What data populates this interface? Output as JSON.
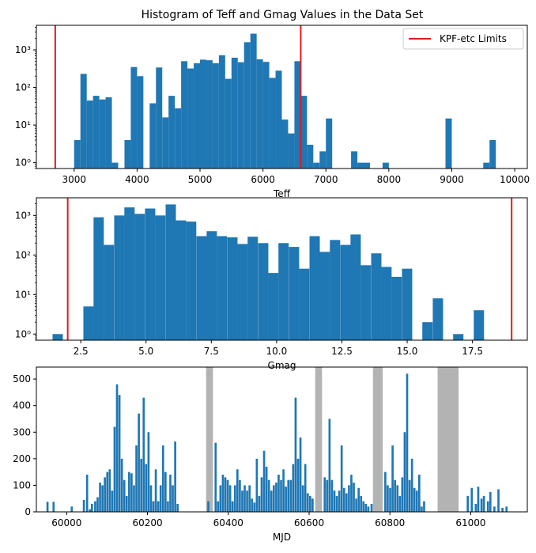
{
  "colors": {
    "bar": "#1f77b4",
    "limit": "#e41a1c",
    "shade": "#b3b3b3"
  },
  "chart_data": [
    {
      "type": "bar",
      "title": "Histogram of Teff and Gmag Values in the Data Set",
      "xlabel": "Teff",
      "ylabel": "",
      "yscale": "log",
      "xlim": [
        2400,
        10200
      ],
      "ylim": [
        0.7,
        4500
      ],
      "xticks": [
        3000,
        4000,
        5000,
        6000,
        7000,
        8000,
        9000,
        10000
      ],
      "xtick_labels": [
        "3000",
        "4000",
        "5000",
        "6000",
        "7000",
        "8000",
        "9000",
        "10000"
      ],
      "yticks": [
        1,
        10,
        100,
        1000
      ],
      "ytick_labels": [
        "10⁰",
        "10¹",
        "10²",
        "10³"
      ],
      "bin_width": 100,
      "bins": [
        [
          3000,
          4
        ],
        [
          3100,
          230
        ],
        [
          3200,
          45
        ],
        [
          3300,
          60
        ],
        [
          3400,
          48
        ],
        [
          3500,
          55
        ],
        [
          3600,
          1
        ],
        [
          3800,
          4
        ],
        [
          3900,
          350
        ],
        [
          4000,
          200
        ],
        [
          4200,
          38
        ],
        [
          4300,
          340
        ],
        [
          4400,
          16
        ],
        [
          4500,
          60
        ],
        [
          4600,
          28
        ],
        [
          4700,
          500
        ],
        [
          4800,
          320
        ],
        [
          4900,
          440
        ],
        [
          5000,
          550
        ],
        [
          5100,
          530
        ],
        [
          5200,
          440
        ],
        [
          5300,
          720
        ],
        [
          5400,
          170
        ],
        [
          5500,
          620
        ],
        [
          5600,
          470
        ],
        [
          5700,
          1600
        ],
        [
          5800,
          2700
        ],
        [
          5900,
          560
        ],
        [
          6000,
          480
        ],
        [
          6100,
          180
        ],
        [
          6200,
          280
        ],
        [
          6300,
          14
        ],
        [
          6400,
          6
        ],
        [
          6500,
          500
        ],
        [
          6600,
          60
        ],
        [
          6700,
          3
        ],
        [
          6800,
          1
        ],
        [
          6900,
          2
        ],
        [
          7000,
          15
        ],
        [
          7400,
          2
        ],
        [
          7500,
          1
        ],
        [
          7600,
          1
        ],
        [
          7900,
          1
        ],
        [
          8900,
          15
        ],
        [
          9500,
          1
        ],
        [
          9600,
          4
        ]
      ],
      "limits": [
        2700,
        6600
      ],
      "legend": {
        "label": "KPF-etc Limits",
        "placement": "top-right"
      }
    },
    {
      "type": "bar",
      "title": "",
      "xlabel": "Gmag",
      "ylabel": "",
      "yscale": "log",
      "xlim": [
        0.8,
        19.6
      ],
      "ylim": [
        0.7,
        2800
      ],
      "xticks": [
        2.5,
        5.0,
        7.5,
        10.0,
        12.5,
        15.0,
        17.5
      ],
      "xtick_labels": [
        "2.5",
        "5.0",
        "7.5",
        "10.0",
        "12.5",
        "15.0",
        "17.5"
      ],
      "yticks": [
        1,
        10,
        100,
        1000
      ],
      "ytick_labels": [
        "10⁰",
        "10¹",
        "10²",
        "10³"
      ],
      "bin_width": 0.3935,
      "bins": [
        [
          1.42,
          1
        ],
        [
          2.6,
          5
        ],
        [
          2.99,
          900
        ],
        [
          3.38,
          180
        ],
        [
          3.78,
          1000
        ],
        [
          4.17,
          1600
        ],
        [
          4.56,
          1100
        ],
        [
          4.96,
          1500
        ],
        [
          5.35,
          1000
        ],
        [
          5.75,
          1900
        ],
        [
          6.14,
          750
        ],
        [
          6.53,
          700
        ],
        [
          6.93,
          300
        ],
        [
          7.32,
          400
        ],
        [
          7.71,
          300
        ],
        [
          8.11,
          280
        ],
        [
          8.5,
          190
        ],
        [
          8.89,
          290
        ],
        [
          9.29,
          200
        ],
        [
          9.68,
          35
        ],
        [
          10.07,
          200
        ],
        [
          10.47,
          160
        ],
        [
          10.86,
          45
        ],
        [
          11.26,
          300
        ],
        [
          11.65,
          120
        ],
        [
          12.04,
          240
        ],
        [
          12.44,
          180
        ],
        [
          12.83,
          330
        ],
        [
          13.22,
          55
        ],
        [
          13.62,
          110
        ],
        [
          14.01,
          50
        ],
        [
          14.4,
          0
        ],
        [
          14.4,
          28
        ],
        [
          14.8,
          45
        ],
        [
          15.19,
          0
        ],
        [
          15.58,
          2
        ],
        [
          15.98,
          8
        ],
        [
          16.76,
          1
        ],
        [
          17.55,
          4
        ]
      ],
      "limits": [
        2,
        19
      ]
    },
    {
      "type": "bar",
      "title": "",
      "xlabel": "MJD",
      "ylabel": "",
      "yscale": "linear",
      "xlim": [
        59925,
        61140
      ],
      "ylim": [
        0,
        545
      ],
      "xticks": [
        60000,
        60200,
        60400,
        60600,
        60800,
        61000
      ],
      "xtick_labels": [
        "60000",
        "60200",
        "60400",
        "60600",
        "60800",
        "61000"
      ],
      "yticks": [
        0,
        100,
        200,
        300,
        400,
        500
      ],
      "ytick_labels": [
        "0",
        "100",
        "200",
        "300",
        "400",
        "500"
      ],
      "bin_width": 5.2,
      "shaded_spans": [
        [
          60345,
          60362
        ],
        [
          60615,
          60632
        ],
        [
          60758,
          60782
        ],
        [
          60918,
          60970
        ]
      ],
      "bins": [
        [
          59950,
          38
        ],
        [
          59965,
          38
        ],
        [
          60010,
          20
        ],
        [
          60040,
          45
        ],
        [
          60048,
          140
        ],
        [
          60055,
          10
        ],
        [
          60060,
          30
        ],
        [
          60068,
          40
        ],
        [
          60074,
          55
        ],
        [
          60080,
          110
        ],
        [
          60086,
          100
        ],
        [
          60092,
          130
        ],
        [
          60098,
          150
        ],
        [
          60104,
          160
        ],
        [
          60110,
          80
        ],
        [
          60116,
          320
        ],
        [
          60122,
          480
        ],
        [
          60128,
          440
        ],
        [
          60134,
          200
        ],
        [
          60140,
          120
        ],
        [
          60146,
          60
        ],
        [
          60152,
          150
        ],
        [
          60158,
          145
        ],
        [
          60164,
          100
        ],
        [
          60170,
          250
        ],
        [
          60176,
          370
        ],
        [
          60182,
          200
        ],
        [
          60188,
          430
        ],
        [
          60194,
          180
        ],
        [
          60200,
          300
        ],
        [
          60206,
          100
        ],
        [
          60212,
          40
        ],
        [
          60218,
          160
        ],
        [
          60224,
          40
        ],
        [
          60230,
          100
        ],
        [
          60236,
          250
        ],
        [
          60242,
          150
        ],
        [
          60248,
          40
        ],
        [
          60254,
          140
        ],
        [
          60260,
          100
        ],
        [
          60266,
          265
        ],
        [
          60272,
          30
        ],
        [
          60348,
          40
        ],
        [
          60366,
          260
        ],
        [
          60372,
          40
        ],
        [
          60378,
          100
        ],
        [
          60384,
          140
        ],
        [
          60390,
          130
        ],
        [
          60396,
          120
        ],
        [
          60402,
          100
        ],
        [
          60408,
          40
        ],
        [
          60414,
          100
        ],
        [
          60420,
          160
        ],
        [
          60426,
          120
        ],
        [
          60432,
          80
        ],
        [
          60438,
          100
        ],
        [
          60444,
          80
        ],
        [
          60450,
          100
        ],
        [
          60456,
          50
        ],
        [
          60462,
          35
        ],
        [
          60468,
          200
        ],
        [
          60474,
          60
        ],
        [
          60480,
          130
        ],
        [
          60486,
          230
        ],
        [
          60492,
          170
        ],
        [
          60498,
          120
        ],
        [
          60504,
          80
        ],
        [
          60510,
          100
        ],
        [
          60516,
          110
        ],
        [
          60522,
          140
        ],
        [
          60528,
          120
        ],
        [
          60534,
          160
        ],
        [
          60540,
          95
        ],
        [
          60546,
          120
        ],
        [
          60552,
          120
        ],
        [
          60558,
          180
        ],
        [
          60564,
          430
        ],
        [
          60570,
          200
        ],
        [
          60576,
          280
        ],
        [
          60582,
          100
        ],
        [
          60588,
          180
        ],
        [
          60594,
          70
        ],
        [
          60600,
          60
        ],
        [
          60606,
          50
        ],
        [
          60636,
          130
        ],
        [
          60642,
          120
        ],
        [
          60648,
          350
        ],
        [
          60654,
          120
        ],
        [
          60660,
          80
        ],
        [
          60666,
          60
        ],
        [
          60672,
          80
        ],
        [
          60678,
          250
        ],
        [
          60684,
          90
        ],
        [
          60690,
          70
        ],
        [
          60696,
          100
        ],
        [
          60702,
          140
        ],
        [
          60708,
          110
        ],
        [
          60714,
          50
        ],
        [
          60720,
          90
        ],
        [
          60726,
          60
        ],
        [
          60732,
          40
        ],
        [
          60738,
          30
        ],
        [
          60744,
          20
        ],
        [
          60752,
          30
        ],
        [
          60786,
          150
        ],
        [
          60792,
          100
        ],
        [
          60798,
          90
        ],
        [
          60804,
          250
        ],
        [
          60810,
          120
        ],
        [
          60816,
          100
        ],
        [
          60822,
          60
        ],
        [
          60828,
          130
        ],
        [
          60834,
          300
        ],
        [
          60840,
          520
        ],
        [
          60846,
          120
        ],
        [
          60852,
          200
        ],
        [
          60858,
          90
        ],
        [
          60864,
          80
        ],
        [
          60870,
          140
        ],
        [
          60876,
          20
        ],
        [
          60882,
          40
        ],
        [
          60990,
          60
        ],
        [
          61000,
          90
        ],
        [
          61010,
          30
        ],
        [
          61016,
          95
        ],
        [
          61024,
          50
        ],
        [
          61030,
          60
        ],
        [
          61040,
          40
        ],
        [
          61046,
          75
        ],
        [
          61056,
          20
        ],
        [
          61066,
          85
        ],
        [
          61076,
          15
        ],
        [
          61086,
          20
        ]
      ]
    }
  ]
}
